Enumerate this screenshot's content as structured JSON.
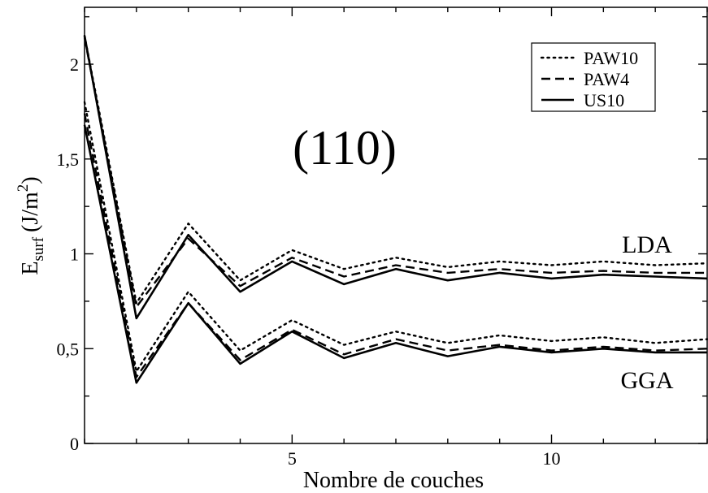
{
  "chart_data": {
    "type": "line",
    "title": "",
    "annotations": {
      "panel": "(110)",
      "upper_group": "LDA",
      "lower_group": "GGA"
    },
    "xlabel": "Nombre de couches",
    "ylabel_main": "E",
    "ylabel_sub": "surf",
    "ylabel_unit": "(J/m",
    "ylabel_sup": "2",
    "ylabel_close": ")",
    "xlim": [
      1,
      13
    ],
    "ylim": [
      0,
      2.3
    ],
    "xticks": [
      1,
      2,
      3,
      4,
      5,
      6,
      7,
      8,
      9,
      10,
      11,
      12,
      13
    ],
    "xtick_labels": [
      {
        "value": 5,
        "label": "5"
      },
      {
        "value": 10,
        "label": "10"
      }
    ],
    "yticks": [
      {
        "value": 0,
        "label": "0"
      },
      {
        "value": 0.5,
        "label": "0,5"
      },
      {
        "value": 1,
        "label": "1"
      },
      {
        "value": 1.5,
        "label": "1,5"
      },
      {
        "value": 2,
        "label": "2"
      }
    ],
    "legend_position": "top-right",
    "legend": [
      {
        "label": "PAW10",
        "style": "dotted"
      },
      {
        "label": "PAW4",
        "style": "dashed"
      },
      {
        "label": "US10",
        "style": "solid"
      }
    ],
    "x": [
      1,
      2,
      3,
      4,
      5,
      6,
      7,
      8,
      9,
      10,
      11,
      12,
      13
    ],
    "series": [
      {
        "group": "LDA",
        "legend": "PAW10",
        "style": "dotted",
        "values": [
          2.15,
          0.74,
          1.16,
          0.86,
          1.02,
          0.92,
          0.98,
          0.93,
          0.96,
          0.94,
          0.96,
          0.94,
          0.95
        ]
      },
      {
        "group": "LDA",
        "legend": "PAW4",
        "style": "dashed",
        "values": [
          2.14,
          0.72,
          1.08,
          0.83,
          0.98,
          0.88,
          0.94,
          0.9,
          0.92,
          0.9,
          0.91,
          0.9,
          0.9
        ]
      },
      {
        "group": "LDA",
        "legend": "US10",
        "style": "solid",
        "values": [
          2.15,
          0.66,
          1.1,
          0.8,
          0.96,
          0.84,
          0.92,
          0.86,
          0.9,
          0.87,
          0.89,
          0.88,
          0.87
        ]
      },
      {
        "group": "GGA",
        "legend": "PAW10",
        "style": "dotted",
        "values": [
          1.8,
          0.38,
          0.8,
          0.49,
          0.65,
          0.52,
          0.59,
          0.53,
          0.57,
          0.54,
          0.56,
          0.53,
          0.55
        ]
      },
      {
        "group": "GGA",
        "legend": "PAW4",
        "style": "dashed",
        "values": [
          1.74,
          0.35,
          0.74,
          0.44,
          0.6,
          0.47,
          0.55,
          0.49,
          0.52,
          0.49,
          0.51,
          0.49,
          0.5
        ]
      },
      {
        "group": "GGA",
        "legend": "US10",
        "style": "solid",
        "values": [
          1.68,
          0.32,
          0.74,
          0.42,
          0.59,
          0.45,
          0.53,
          0.46,
          0.51,
          0.48,
          0.5,
          0.48,
          0.48
        ]
      }
    ]
  }
}
